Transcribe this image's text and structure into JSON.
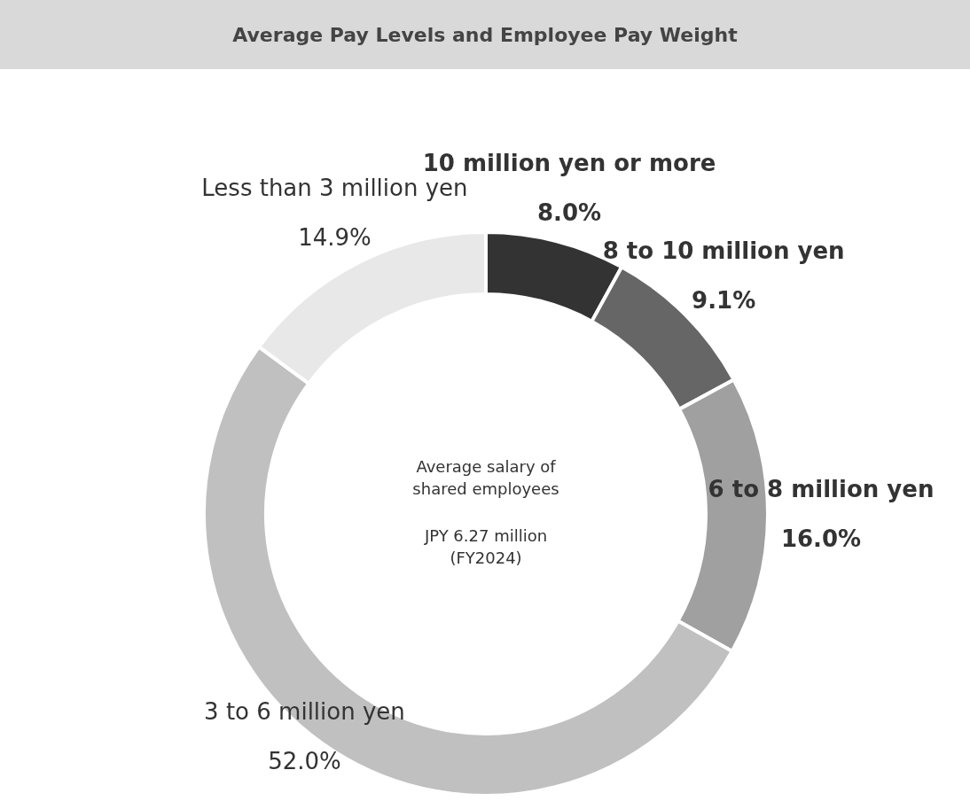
{
  "chart_data": {
    "type": "donut",
    "title": "Average Pay Levels and Employee Pay Weight",
    "categories": [
      "10 million yen or more",
      "8 to 10 million yen",
      "6 to 8 million yen",
      "3 to 6 million yen",
      "Less than 3 million yen"
    ],
    "values": [
      8.0,
      9.1,
      16.0,
      52.0,
      14.9
    ],
    "value_labels": [
      "8.0%",
      "9.1%",
      "16.0%",
      "52.0%",
      "14.9%"
    ],
    "colors": [
      "#333333",
      "#666666",
      "#a0a0a0",
      "#c0c0c0",
      "#e8e8e8"
    ],
    "annotations": [
      "Average salary of\nshared employees",
      "JPY 6.27 million\n(FY2024)"
    ],
    "legend": false
  }
}
